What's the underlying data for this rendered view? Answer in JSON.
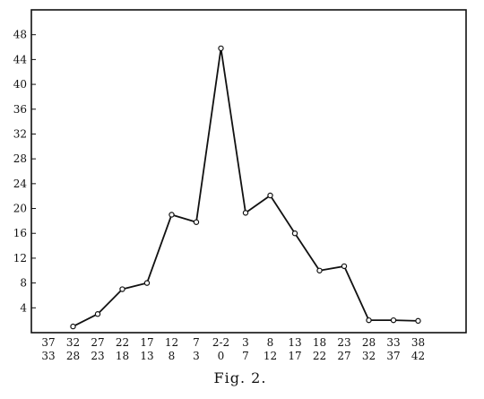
{
  "chart_data": {
    "type": "line",
    "categories": [
      [
        "37",
        "33"
      ],
      [
        "32",
        "28"
      ],
      [
        "27",
        "23"
      ],
      [
        "22",
        "18"
      ],
      [
        "17",
        "13"
      ],
      [
        "12",
        "8"
      ],
      [
        "7",
        "3"
      ],
      [
        "2-2",
        "0"
      ],
      [
        "3",
        "7"
      ],
      [
        "8",
        "12"
      ],
      [
        "13",
        "17"
      ],
      [
        "18",
        "22"
      ],
      [
        "23",
        "27"
      ],
      [
        "28",
        "32"
      ],
      [
        "33",
        "37"
      ],
      [
        "38",
        "42"
      ]
    ],
    "series": [
      {
        "values": [
          null,
          1,
          3,
          7,
          8,
          19,
          17.8,
          45.8,
          19.3,
          22.1,
          16,
          10,
          10.7,
          2,
          2,
          1.9
        ]
      }
    ],
    "y_ticks": [
      4,
      8,
      12,
      16,
      20,
      24,
      28,
      32,
      36,
      40,
      44,
      48
    ],
    "ylim": [
      0,
      52
    ],
    "grid": false,
    "legend": false,
    "caption": "Fig. 2.",
    "colors": {
      "line": "#111111",
      "marker_fill": "#ffffff",
      "frame": "#111111"
    }
  }
}
